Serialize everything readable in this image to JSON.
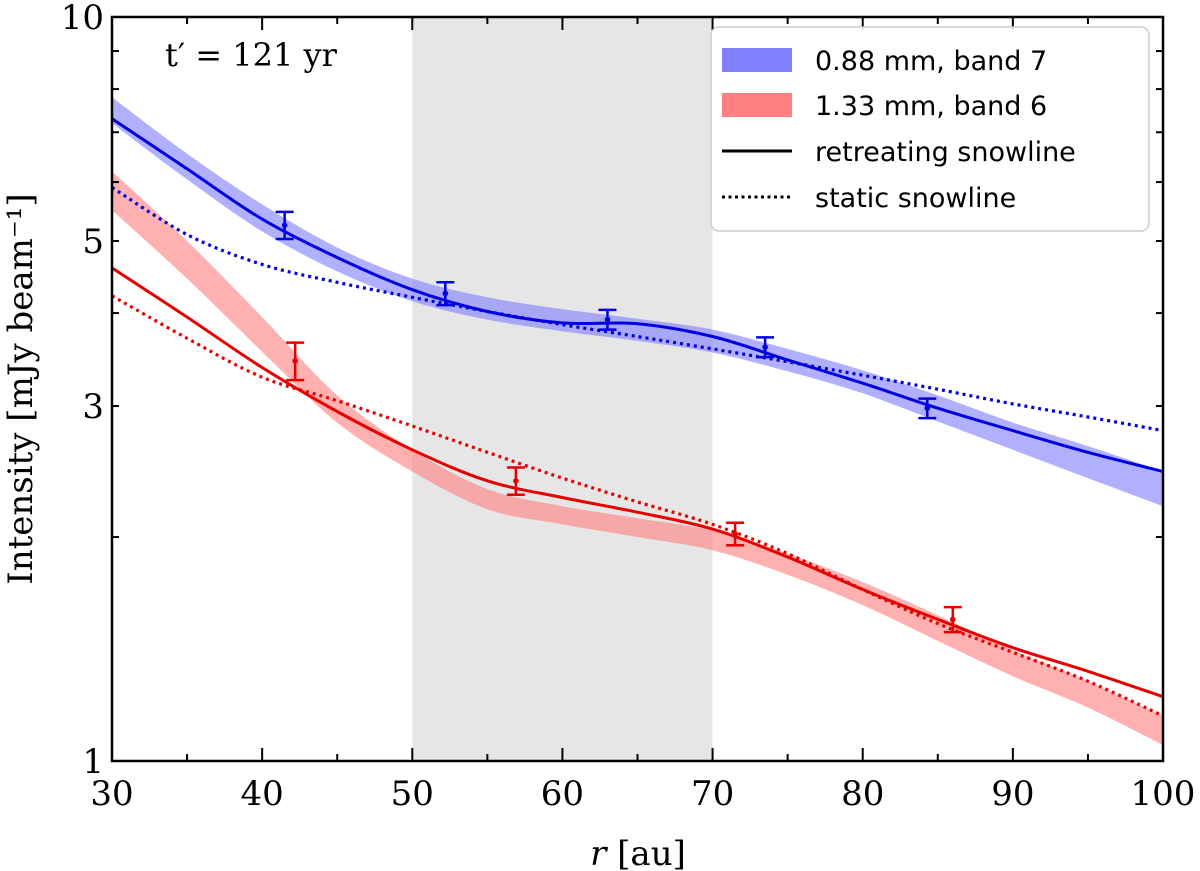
{
  "chart_data": {
    "type": "line",
    "title": "",
    "xlabel": "r [au]",
    "ylabel": "Intensity [mJy beam⁻¹]",
    "xscale": "linear",
    "yscale": "log",
    "xlim": [
      30,
      100
    ],
    "ylim": [
      1,
      10
    ],
    "xticks": [
      30,
      40,
      50,
      60,
      70,
      80,
      90,
      100
    ],
    "xtick_labels": [
      "30",
      "40",
      "50",
      "60",
      "70",
      "80",
      "90",
      "100"
    ],
    "yticks": [
      1,
      3,
      5,
      10
    ],
    "ytick_labels": [
      "1",
      "3",
      "5",
      "10"
    ],
    "shaded_region": {
      "x": [
        50,
        70
      ],
      "color": "#e6e6e6"
    },
    "annotation": {
      "text": "t′ = 121 yr",
      "position": "top-left"
    },
    "legend": {
      "position": "top-right",
      "entries": [
        {
          "label": "0.88 mm, band 7",
          "style": "band",
          "color": "#8080ff"
        },
        {
          "label": "1.33 mm, band 6",
          "style": "band",
          "color": "#ff8080"
        },
        {
          "label": "retreating snowline",
          "style": "solid",
          "color": "#000000"
        },
        {
          "label": "static snowline",
          "style": "dotted",
          "color": "#000000"
        }
      ]
    },
    "series": [
      {
        "name": "0.88 mm, band 7",
        "color": "#0000e0",
        "band_color": "#8080ff",
        "observed_band": {
          "x": [
            30,
            35,
            40,
            45,
            50,
            55,
            60,
            65,
            70,
            75,
            80,
            85,
            90,
            95,
            100
          ],
          "low": [
            7.2,
            6.05,
            5.15,
            4.55,
            4.15,
            3.92,
            3.78,
            3.67,
            3.54,
            3.34,
            3.12,
            2.86,
            2.62,
            2.4,
            2.2
          ],
          "high": [
            7.8,
            6.55,
            5.6,
            4.9,
            4.45,
            4.2,
            4.05,
            3.93,
            3.8,
            3.58,
            3.35,
            3.1,
            2.85,
            2.65,
            2.45
          ]
        },
        "retreating": {
          "x": [
            30,
            35,
            40,
            45,
            50,
            55,
            60,
            65,
            70,
            75,
            80,
            85,
            90,
            95,
            100
          ],
          "y": [
            7.3,
            6.25,
            5.35,
            4.75,
            4.3,
            4.02,
            3.88,
            3.87,
            3.72,
            3.46,
            3.22,
            2.98,
            2.78,
            2.6,
            2.45
          ]
        },
        "static": {
          "x": [
            30,
            35,
            40,
            45,
            50,
            55,
            60,
            65,
            70,
            75,
            80,
            85,
            90,
            95,
            100
          ],
          "y": [
            5.9,
            5.1,
            4.65,
            4.4,
            4.2,
            4.02,
            3.86,
            3.72,
            3.58,
            3.44,
            3.3,
            3.16,
            3.02,
            2.9,
            2.78
          ]
        },
        "errorbars": {
          "x": [
            41.5,
            52.2,
            63.0,
            73.5,
            84.3
          ],
          "y": [
            5.25,
            4.25,
            3.92,
            3.6,
            2.98
          ],
          "err": [
            0.22,
            0.15,
            0.12,
            0.11,
            0.09
          ]
        }
      },
      {
        "name": "1.33 mm, band 6",
        "color": "#e60000",
        "band_color": "#ff8080",
        "observed_band": {
          "x": [
            30,
            35,
            40,
            45,
            50,
            55,
            60,
            65,
            70,
            75,
            80,
            85,
            90,
            95,
            100
          ],
          "low": [
            5.5,
            4.45,
            3.55,
            2.85,
            2.45,
            2.18,
            2.08,
            2.0,
            1.92,
            1.78,
            1.62,
            1.45,
            1.3,
            1.18,
            1.05
          ],
          "high": [
            6.2,
            5.0,
            3.95,
            3.1,
            2.62,
            2.32,
            2.2,
            2.12,
            2.04,
            1.9,
            1.74,
            1.57,
            1.41,
            1.28,
            1.15
          ]
        },
        "retreating": {
          "x": [
            30,
            35,
            40,
            45,
            50,
            55,
            60,
            65,
            70,
            75,
            80,
            85,
            90,
            95,
            100
          ],
          "y": [
            4.6,
            3.95,
            3.38,
            2.95,
            2.62,
            2.38,
            2.26,
            2.16,
            2.05,
            1.88,
            1.7,
            1.55,
            1.42,
            1.32,
            1.22
          ]
        },
        "static": {
          "x": [
            30,
            35,
            40,
            45,
            50,
            55,
            60,
            65,
            70,
            75,
            80,
            85,
            90,
            95,
            100
          ],
          "y": [
            4.22,
            3.7,
            3.28,
            3.05,
            2.82,
            2.6,
            2.4,
            2.23,
            2.08,
            1.9,
            1.7,
            1.53,
            1.4,
            1.28,
            1.15
          ]
        },
        "errorbars": {
          "x": [
            42.2,
            56.9,
            71.5,
            86.0
          ],
          "y": [
            3.45,
            2.38,
            2.02,
            1.55
          ],
          "err": [
            0.2,
            0.1,
            0.07,
            0.06
          ]
        }
      }
    ]
  }
}
